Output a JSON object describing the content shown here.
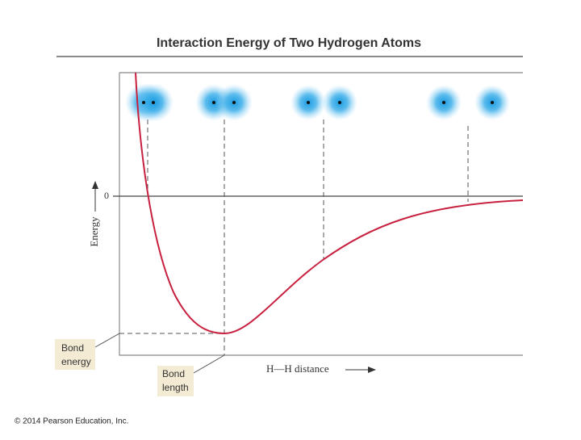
{
  "title": "Interaction Energy of Two Hydrogen Atoms",
  "y_axis": {
    "label": "Energy",
    "zero_label": "0"
  },
  "x_axis": {
    "label": "H—H distance"
  },
  "callouts": [
    {
      "lines": [
        "Bond",
        "energy"
      ]
    },
    {
      "lines": [
        "Bond",
        "length"
      ]
    }
  ],
  "footer": "© 2014 Pearson Education, Inc."
}
